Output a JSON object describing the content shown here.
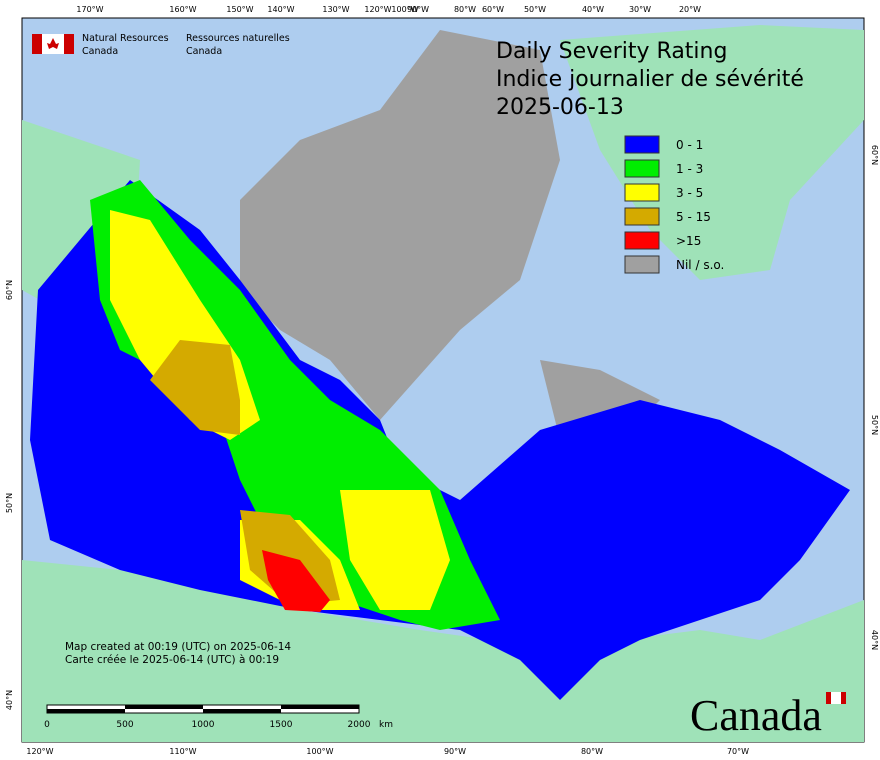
{
  "org": {
    "en": [
      "Natural Resources",
      "Canada"
    ],
    "fr": [
      "Ressources naturelles",
      "Canada"
    ]
  },
  "title": {
    "en": "Daily Severity Rating",
    "fr": "Indice journalier de sévérité",
    "date": "2025-06-13"
  },
  "legend": [
    {
      "label": "0 - 1",
      "color": "#0000ff"
    },
    {
      "label": "1 - 3",
      "color": "#00ee00"
    },
    {
      "label": "3 - 5",
      "color": "#ffff00"
    },
    {
      "label": "5 - 15",
      "color": "#d4aa00"
    },
    {
      "label": ">15",
      "color": "#ff0000"
    },
    {
      "label": "Nil / s.o.",
      "color": "#a0a0a0"
    }
  ],
  "graticule": {
    "top": [
      "170°W",
      "160°W",
      "150°W",
      "140°W",
      "130°W",
      "120°W",
      "100°W",
      "90°W",
      "80°W",
      "60°W",
      "50°W",
      "40°W",
      "30°W",
      "20°W"
    ],
    "bottom": [
      "120°W",
      "110°W",
      "100°W",
      "90°W",
      "80°W",
      "70°W"
    ],
    "left": [
      "60°N",
      "50°N",
      "40°N"
    ],
    "right": [
      "60°N",
      "50°N",
      "40°N"
    ]
  },
  "notes": [
    "Map created at 00:19 (UTC) on 2025-06-14",
    "Carte créée le 2025-06-14 (UTC) à 00:19"
  ],
  "scale": {
    "labels": [
      "0",
      "500",
      "1000",
      "1500",
      "2000"
    ],
    "unit": "km"
  },
  "wordmark": "Canada"
}
